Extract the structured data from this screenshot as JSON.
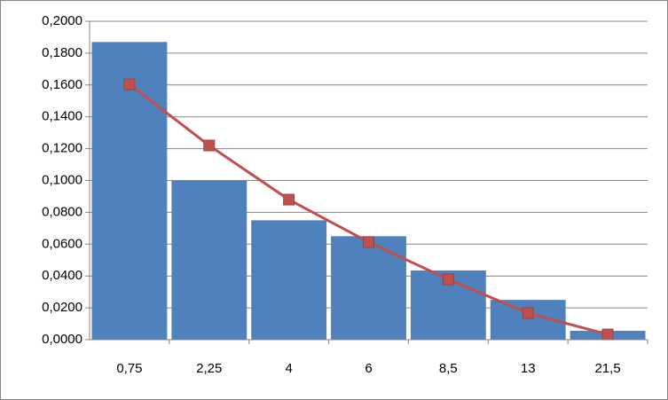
{
  "chart_data": {
    "type": "bar-line",
    "categories": [
      "0,75",
      "2,25",
      "4",
      "6",
      "8,5",
      "13",
      "21,5"
    ],
    "series": [
      {
        "type": "bar",
        "color": "#4f81bd",
        "values": [
          0.187,
          0.1,
          0.075,
          0.065,
          0.0435,
          0.025,
          0.0056
        ]
      },
      {
        "type": "line",
        "color": "#c0504d",
        "values": [
          0.1604,
          0.122,
          0.088,
          0.0613,
          0.0379,
          0.0167,
          0.0033
        ]
      }
    ],
    "ylim": [
      0,
      0.2
    ],
    "yticks": [
      {
        "value": 0,
        "label": "0,0000"
      },
      {
        "value": 0.02,
        "label": "0,0200"
      },
      {
        "value": 0.04,
        "label": "0,0400"
      },
      {
        "value": 0.06,
        "label": "0,0600"
      },
      {
        "value": 0.08,
        "label": "0,0800"
      },
      {
        "value": 0.1,
        "label": "0,1000"
      },
      {
        "value": 0.12,
        "label": "0,1200"
      },
      {
        "value": 0.14,
        "label": "0,1400"
      },
      {
        "value": 0.16,
        "label": "0,1600"
      },
      {
        "value": 0.18,
        "label": "0,1800"
      },
      {
        "value": 0.2,
        "label": "0,2000"
      }
    ],
    "grid": true
  }
}
